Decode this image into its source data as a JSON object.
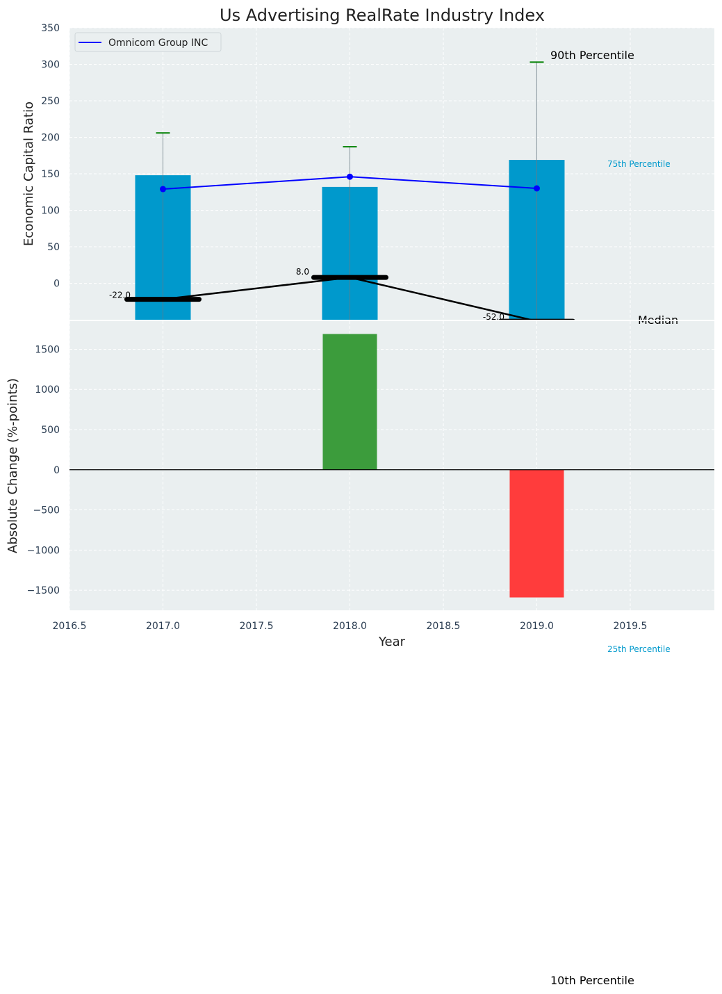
{
  "chart_data": [
    {
      "type": "bar",
      "title": "Us Advertising RealRate Industry Index",
      "xlabel": "",
      "ylabel": "Economic Capital Ratio",
      "xlim": [
        2016.5,
        2019.95
      ],
      "ylim": [
        -50,
        350
      ],
      "yticks": [
        0,
        50,
        100,
        150,
        200,
        250,
        300,
        350
      ],
      "grid": true,
      "legend": {
        "position": "top-left",
        "entries": [
          "Omnicom Group INC"
        ]
      },
      "x": [
        2017.0,
        2018.0,
        2019.0
      ],
      "series": [
        {
          "name": "75th Percentile",
          "kind": "bar",
          "color": "#0099cc",
          "values": [
            148,
            132,
            169
          ]
        },
        {
          "name": "90th Percentile",
          "kind": "whisker-top",
          "color": "#008000",
          "values": [
            206,
            187,
            303
          ]
        },
        {
          "name": "Omnicom Group INC",
          "kind": "line",
          "color": "#0000ff",
          "values": [
            129,
            146,
            130
          ]
        },
        {
          "name": "Median",
          "kind": "line",
          "color": "#000000",
          "values": [
            -22.0,
            8.0,
            -52.0
          ]
        }
      ],
      "data_labels": [
        "-22.0",
        "8.0",
        "-52.0"
      ],
      "annotations": [
        "90th Percentile",
        "75th Percentile",
        "Median"
      ]
    },
    {
      "type": "bar",
      "xlabel": "Year",
      "ylabel": "Absolute Change (%-points)",
      "xlim": [
        2016.5,
        2019.95
      ],
      "ylim": [
        -1750,
        1850
      ],
      "yticks": [
        -1500,
        -1000,
        -500,
        0,
        500,
        1000,
        1500
      ],
      "ytick_labels": [
        "−1500",
        "−1000",
        "−500",
        "0",
        "500",
        "1000",
        "1500"
      ],
      "xticks": [
        2016.5,
        2017.0,
        2017.5,
        2018.0,
        2018.5,
        2019.0,
        2019.5
      ],
      "xtick_labels": [
        "2016.5",
        "2017.0",
        "2017.5",
        "2018.0",
        "2018.5",
        "2019.0",
        "2019.5"
      ],
      "grid": true,
      "x": [
        2018.0,
        2019.0
      ],
      "values": [
        1690,
        -1590
      ],
      "colors": {
        "positive": "#3c9c3c",
        "negative": "#ff3c3c"
      },
      "annotations": [
        "25th Percentile",
        "10th Percentile"
      ]
    }
  ]
}
